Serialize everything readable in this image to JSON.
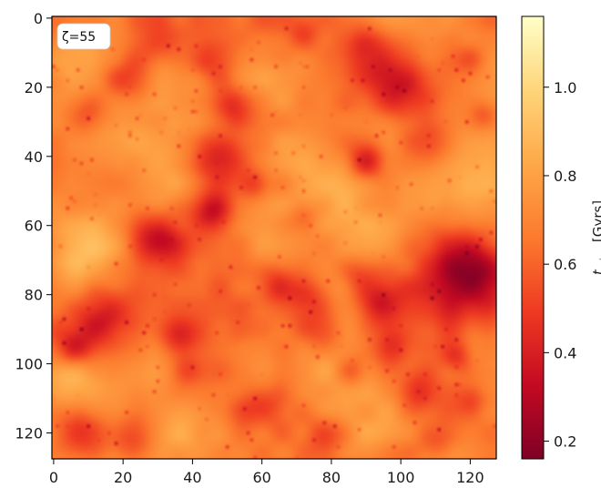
{
  "chart_data": {
    "type": "heatmap",
    "title": "",
    "annotation": "ζ=55",
    "x_ticks": [
      "0",
      "20",
      "40",
      "60",
      "80",
      "100",
      "120"
    ],
    "y_ticks": [
      "0",
      "20",
      "40",
      "60",
      "80",
      "100",
      "120"
    ],
    "xlim": [
      0,
      127
    ],
    "ylim": [
      127,
      0
    ],
    "grid_size": 128,
    "colormap": "YlOrRd_r",
    "colorbar": {
      "label": "t_reion [Gyrs]",
      "label_main": "t",
      "label_sub": "reion",
      "label_unit": " [Gyrs]",
      "range": [
        0.16,
        1.16
      ],
      "ticks": [
        "0.2",
        "0.4",
        "0.6",
        "0.8",
        "1.0"
      ],
      "tick_values": [
        0.2,
        0.4,
        0.6,
        0.8,
        1.0
      ],
      "colors": [
        "#7f0026",
        "#c40a22",
        "#ee3a22",
        "#fc7a2e",
        "#fea848",
        "#fed57a",
        "#ffffc8"
      ]
    },
    "field": {
      "base": 0.68,
      "cold_spots": [
        {
          "x": 122,
          "y": 72,
          "r": 7,
          "depth": 0.36
        },
        {
          "x": 113,
          "y": 80,
          "r": 9,
          "depth": 0.28
        },
        {
          "x": 30,
          "y": 64,
          "r": 5,
          "depth": 0.3
        },
        {
          "x": 45,
          "y": 56,
          "r": 4,
          "depth": 0.28
        },
        {
          "x": 48,
          "y": 40,
          "r": 5,
          "depth": 0.24
        },
        {
          "x": 90,
          "y": 41,
          "r": 4,
          "depth": 0.28
        },
        {
          "x": 90,
          "y": 10,
          "r": 6,
          "depth": 0.24
        },
        {
          "x": 100,
          "y": 22,
          "r": 6,
          "depth": 0.26
        },
        {
          "x": 108,
          "y": 36,
          "r": 4,
          "depth": 0.2
        },
        {
          "x": 46,
          "y": 13,
          "r": 5,
          "depth": 0.24
        },
        {
          "x": 52,
          "y": 25,
          "r": 4,
          "depth": 0.26
        },
        {
          "x": 22,
          "y": 17,
          "r": 5,
          "depth": 0.22
        },
        {
          "x": 10,
          "y": 28,
          "r": 4,
          "depth": 0.18
        },
        {
          "x": 14,
          "y": 88,
          "r": 6,
          "depth": 0.3
        },
        {
          "x": 6,
          "y": 95,
          "r": 4,
          "depth": 0.22
        },
        {
          "x": 36,
          "y": 92,
          "r": 4,
          "depth": 0.26
        },
        {
          "x": 74,
          "y": 82,
          "r": 5,
          "depth": 0.24
        },
        {
          "x": 78,
          "y": 91,
          "r": 4,
          "depth": 0.2
        },
        {
          "x": 64,
          "y": 77,
          "r": 4,
          "depth": 0.2
        },
        {
          "x": 88,
          "y": 76,
          "r": 4,
          "depth": 0.18
        },
        {
          "x": 94,
          "y": 83,
          "r": 4,
          "depth": 0.22
        },
        {
          "x": 8,
          "y": 120,
          "r": 5,
          "depth": 0.26
        },
        {
          "x": 22,
          "y": 122,
          "r": 5,
          "depth": 0.22
        },
        {
          "x": 104,
          "y": 108,
          "r": 4,
          "depth": 0.24
        },
        {
          "x": 98,
          "y": 95,
          "r": 4,
          "depth": 0.2
        },
        {
          "x": 116,
          "y": 98,
          "r": 3,
          "depth": 0.18
        },
        {
          "x": 60,
          "y": 112,
          "r": 4,
          "depth": 0.18
        },
        {
          "x": 78,
          "y": 120,
          "r": 4,
          "depth": 0.18
        },
        {
          "x": 110,
          "y": 124,
          "r": 4,
          "depth": 0.18
        },
        {
          "x": 58,
          "y": 48,
          "r": 3,
          "depth": 0.18
        },
        {
          "x": 30,
          "y": 8,
          "r": 4,
          "depth": 0.14
        },
        {
          "x": 72,
          "y": 5,
          "r": 3,
          "depth": 0.14
        },
        {
          "x": 120,
          "y": 12,
          "r": 3,
          "depth": 0.16
        },
        {
          "x": 124,
          "y": 28,
          "r": 3,
          "depth": 0.16
        },
        {
          "x": 72,
          "y": 58,
          "r": 3,
          "depth": 0.14
        },
        {
          "x": 38,
          "y": 102,
          "r": 3,
          "depth": 0.16
        },
        {
          "x": 86,
          "y": 102,
          "r": 3,
          "depth": 0.14
        },
        {
          "x": 120,
          "y": 110,
          "r": 3,
          "depth": 0.14
        }
      ],
      "hot_spots": [
        {
          "x": 10,
          "y": 68,
          "r": 9,
          "lift": 0.26
        },
        {
          "x": 4,
          "y": 104,
          "r": 6,
          "lift": 0.2
        },
        {
          "x": 40,
          "y": 118,
          "r": 7,
          "lift": 0.14
        },
        {
          "x": 70,
          "y": 35,
          "r": 9,
          "lift": 0.12
        },
        {
          "x": 62,
          "y": 64,
          "r": 9,
          "lift": 0.14
        },
        {
          "x": 84,
          "y": 60,
          "r": 8,
          "lift": 0.12
        },
        {
          "x": 118,
          "y": 50,
          "r": 9,
          "lift": 0.14
        },
        {
          "x": 30,
          "y": 36,
          "r": 8,
          "lift": 0.1
        },
        {
          "x": 6,
          "y": 8,
          "r": 6,
          "lift": 0.12
        },
        {
          "x": 60,
          "y": 100,
          "r": 8,
          "lift": 0.1
        },
        {
          "x": 110,
          "y": 2,
          "r": 6,
          "lift": 0.1
        },
        {
          "x": 90,
          "y": 124,
          "r": 6,
          "lift": 0.1
        },
        {
          "x": 26,
          "y": 104,
          "r": 5,
          "lift": 0.08
        }
      ]
    }
  }
}
